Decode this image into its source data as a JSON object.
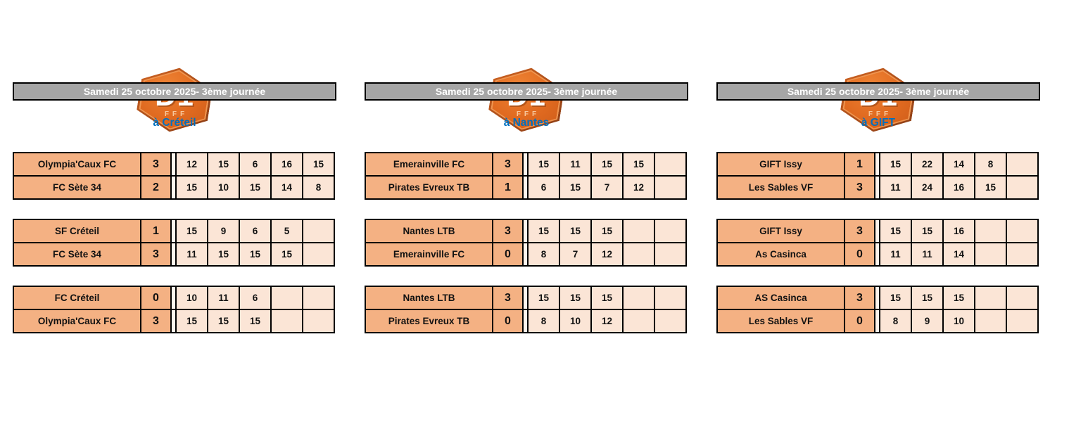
{
  "logo": {
    "title": "D1",
    "subtitle": "FFF"
  },
  "colors": {
    "team_cell_orange": "#F4B183",
    "set_cell_orange": "#FBE5D6",
    "header_gray": "#A6A6A6",
    "location_blue": "#0070C0",
    "logo_orange": "#E0671F",
    "border_black": "#000000"
  },
  "columns": [
    {
      "header": "Samedi 25 octobre 2025- 3ème journée",
      "location": "à Créteil",
      "matches": [
        {
          "rows": [
            {
              "team": "Olympia'Caux FC",
              "score": "3",
              "sets": [
                "12",
                "15",
                "6",
                "16",
                "15"
              ]
            },
            {
              "team": "FC Sète 34",
              "score": "2",
              "sets": [
                "15",
                "10",
                "15",
                "14",
                "8"
              ]
            }
          ]
        },
        {
          "rows": [
            {
              "team": "SF Créteil",
              "score": "1",
              "sets": [
                "15",
                "9",
                "6",
                "5",
                ""
              ]
            },
            {
              "team": "FC Sète 34",
              "score": "3",
              "sets": [
                "11",
                "15",
                "15",
                "15",
                ""
              ]
            }
          ]
        },
        {
          "rows": [
            {
              "team": "FC Créteil",
              "score": "0",
              "sets": [
                "10",
                "11",
                "6",
                "",
                ""
              ]
            },
            {
              "team": "Olympia'Caux FC",
              "score": "3",
              "sets": [
                "15",
                "15",
                "15",
                "",
                ""
              ]
            }
          ]
        }
      ]
    },
    {
      "header": "Samedi 25 octobre 2025- 3ème journée",
      "location": "à Nantes",
      "matches": [
        {
          "rows": [
            {
              "team": "Emerainville FC",
              "score": "3",
              "sets": [
                "15",
                "11",
                "15",
                "15",
                ""
              ]
            },
            {
              "team": "Pirates Evreux TB",
              "score": "1",
              "sets": [
                "6",
                "15",
                "7",
                "12",
                ""
              ]
            }
          ]
        },
        {
          "rows": [
            {
              "team": "Nantes LTB",
              "score": "3",
              "sets": [
                "15",
                "15",
                "15",
                "",
                ""
              ]
            },
            {
              "team": "Emerainville FC",
              "score": "0",
              "sets": [
                "8",
                "7",
                "12",
                "",
                ""
              ]
            }
          ]
        },
        {
          "rows": [
            {
              "team": "Nantes LTB",
              "score": "3",
              "sets": [
                "15",
                "15",
                "15",
                "",
                ""
              ]
            },
            {
              "team": "Pirates Evreux TB",
              "score": "0",
              "sets": [
                "8",
                "10",
                "12",
                "",
                ""
              ]
            }
          ]
        }
      ]
    },
    {
      "header": "Samedi 25 octobre 2025- 3ème journée",
      "location": "à GIFT",
      "matches": [
        {
          "rows": [
            {
              "team": "GIFT Issy",
              "score": "1",
              "sets": [
                "15",
                "22",
                "14",
                "8",
                ""
              ]
            },
            {
              "team": "Les Sables VF",
              "score": "3",
              "sets": [
                "11",
                "24",
                "16",
                "15",
                ""
              ]
            }
          ]
        },
        {
          "rows": [
            {
              "team": "GIFT Issy",
              "score": "3",
              "sets": [
                "15",
                "15",
                "16",
                "",
                ""
              ]
            },
            {
              "team": "As Casinca",
              "score": "0",
              "sets": [
                "11",
                "11",
                "14",
                "",
                ""
              ]
            }
          ]
        },
        {
          "rows": [
            {
              "team": "AS Casinca",
              "score": "3",
              "sets": [
                "15",
                "15",
                "15",
                "",
                ""
              ]
            },
            {
              "team": "Les Sables VF",
              "score": "0",
              "sets": [
                "8",
                "9",
                "10",
                "",
                ""
              ]
            }
          ]
        }
      ]
    }
  ]
}
